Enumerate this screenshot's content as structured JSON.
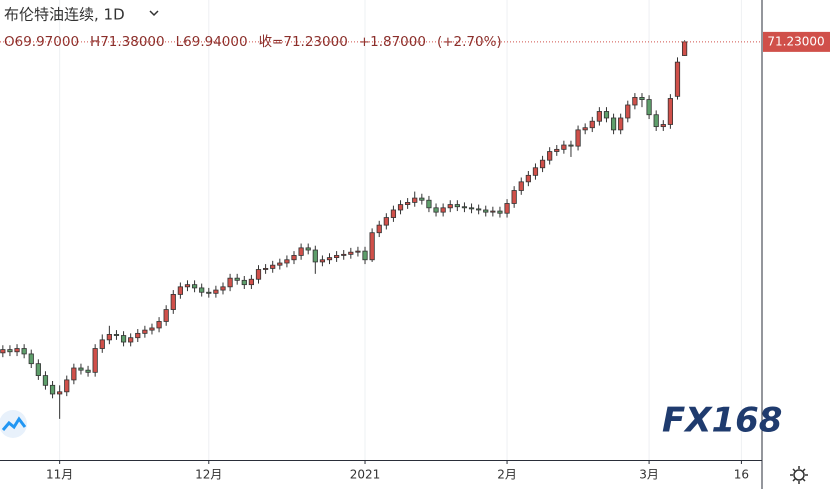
{
  "chart_data": {
    "type": "candlestick",
    "title": "布伦特油连续, 1D",
    "ohlc_labels": [
      "O69.97000",
      "H71.38000",
      "L69.94000",
      "收=71.23000",
      "+1.87000",
      "(+2.70%)"
    ],
    "last_price_label": "71.23000",
    "watermark": "FX168",
    "up_color": "#d0504a",
    "down_color": "#5e9e6b",
    "grid": true,
    "xlim": [
      -0.4,
      106.9
    ],
    "ylim": [
      32.6,
      75.1
    ],
    "xticks": [
      {
        "value": 8,
        "label": "11月"
      },
      {
        "value": 29,
        "label": "12月"
      },
      {
        "value": 51,
        "label": "2021"
      },
      {
        "value": 71,
        "label": "2月"
      },
      {
        "value": 91,
        "label": "3月"
      },
      {
        "value": 104,
        "label": "16"
      }
    ],
    "open": [
      42.5,
      42.8,
      42.6,
      42.9,
      42.4,
      41.5,
      40.4,
      39.5,
      38.7,
      38.9,
      40.0,
      41.1,
      40.9,
      40.7,
      42.9,
      43.7,
      44.2,
      44.1,
      43.5,
      43.9,
      44.3,
      44.6,
      44.8,
      45.4,
      46.5,
      47.9,
      48.6,
      48.8,
      48.5,
      48.1,
      48.0,
      48.3,
      48.6,
      49.4,
      49.2,
      48.8,
      49.3,
      50.2,
      50.3,
      50.6,
      50.8,
      51.1,
      51.5,
      52.2,
      52.0,
      50.9,
      51.1,
      51.3,
      51.5,
      51.6,
      51.8,
      51.9,
      51.1,
      53.6,
      54.3,
      55.0,
      55.7,
      56.2,
      56.4,
      56.8,
      56.6,
      55.9,
      55.5,
      55.9,
      56.2,
      56.0,
      55.9,
      55.8,
      55.7,
      55.5,
      55.6,
      55.4,
      56.3,
      57.5,
      58.3,
      58.9,
      59.6,
      60.3,
      61.1,
      61.3,
      61.7,
      61.6,
      63.1,
      63.3,
      63.9,
      64.8,
      64.2,
      63.1,
      64.2,
      65.4,
      66.1,
      65.9,
      64.5,
      63.4,
      63.6,
      66.2,
      69.97
    ],
    "high": [
      43.2,
      43.2,
      43.3,
      43.3,
      42.8,
      41.9,
      40.8,
      39.9,
      39.5,
      40.4,
      41.5,
      41.5,
      41.3,
      43.3,
      44.2,
      45.0,
      44.6,
      44.5,
      44.3,
      44.7,
      45.0,
      45.2,
      45.8,
      46.9,
      48.3,
      49.0,
      49.2,
      49.2,
      48.9,
      48.5,
      48.7,
      49.0,
      49.8,
      49.8,
      49.6,
      49.7,
      50.6,
      50.7,
      51.0,
      51.2,
      51.5,
      51.9,
      52.6,
      52.6,
      52.4,
      51.5,
      51.7,
      51.9,
      52.0,
      52.2,
      52.3,
      52.3,
      54.0,
      54.7,
      55.4,
      56.1,
      56.6,
      56.8,
      57.4,
      57.2,
      57.0,
      56.3,
      56.3,
      56.6,
      56.6,
      56.4,
      56.3,
      56.2,
      56.1,
      56.0,
      56.0,
      56.7,
      57.9,
      58.7,
      59.3,
      60.0,
      60.7,
      61.5,
      61.7,
      62.1,
      62.1,
      63.5,
      63.7,
      64.3,
      65.2,
      65.2,
      64.6,
      64.6,
      65.8,
      66.5,
      66.5,
      66.3,
      64.9,
      64.0,
      66.4,
      69.8,
      71.38
    ],
    "low": [
      42.1,
      42.2,
      42.2,
      42.0,
      41.1,
      40.0,
      39.1,
      38.3,
      36.4,
      38.5,
      39.6,
      40.5,
      40.3,
      40.3,
      42.5,
      43.3,
      43.7,
      43.1,
      43.1,
      43.5,
      43.9,
      44.2,
      44.4,
      45.0,
      46.1,
      47.5,
      48.2,
      48.1,
      47.7,
      47.6,
      47.6,
      47.9,
      48.2,
      48.8,
      48.4,
      48.4,
      48.9,
      49.8,
      49.9,
      50.2,
      50.4,
      50.7,
      51.1,
      51.6,
      49.8,
      50.5,
      50.7,
      50.9,
      51.1,
      51.2,
      51.4,
      50.7,
      50.9,
      53.2,
      53.9,
      54.6,
      55.3,
      55.8,
      56.0,
      56.2,
      55.5,
      55.1,
      55.1,
      55.5,
      55.6,
      55.5,
      55.4,
      55.3,
      55.1,
      55.1,
      55.0,
      55.0,
      55.9,
      57.1,
      57.9,
      58.5,
      59.2,
      59.9,
      60.7,
      60.9,
      60.6,
      61.2,
      62.7,
      62.9,
      63.5,
      63.8,
      62.7,
      62.7,
      63.8,
      65.0,
      65.2,
      64.1,
      63.0,
      63.0,
      63.2,
      65.9,
      69.94
    ],
    "close": [
      42.8,
      42.6,
      42.9,
      42.4,
      41.5,
      40.4,
      39.5,
      38.7,
      38.9,
      40.0,
      41.1,
      40.9,
      40.7,
      42.9,
      43.7,
      44.2,
      44.1,
      43.5,
      43.9,
      44.3,
      44.6,
      44.8,
      45.4,
      46.5,
      47.9,
      48.6,
      48.8,
      48.5,
      48.1,
      48.0,
      48.3,
      48.6,
      49.4,
      49.2,
      48.8,
      49.3,
      50.2,
      50.3,
      50.6,
      50.8,
      51.1,
      51.5,
      52.2,
      52.0,
      50.9,
      51.1,
      51.3,
      51.5,
      51.6,
      51.8,
      51.9,
      51.1,
      53.6,
      54.3,
      55.0,
      55.7,
      56.2,
      56.4,
      56.8,
      56.6,
      55.9,
      55.5,
      55.9,
      56.2,
      56.0,
      55.9,
      55.8,
      55.7,
      55.5,
      55.6,
      55.4,
      56.3,
      57.5,
      58.3,
      58.9,
      59.6,
      60.3,
      61.1,
      61.3,
      61.7,
      61.6,
      63.1,
      63.3,
      63.9,
      64.8,
      64.2,
      63.1,
      64.2,
      65.4,
      66.1,
      65.9,
      64.5,
      63.4,
      63.6,
      66.0,
      69.36,
      71.23
    ]
  }
}
